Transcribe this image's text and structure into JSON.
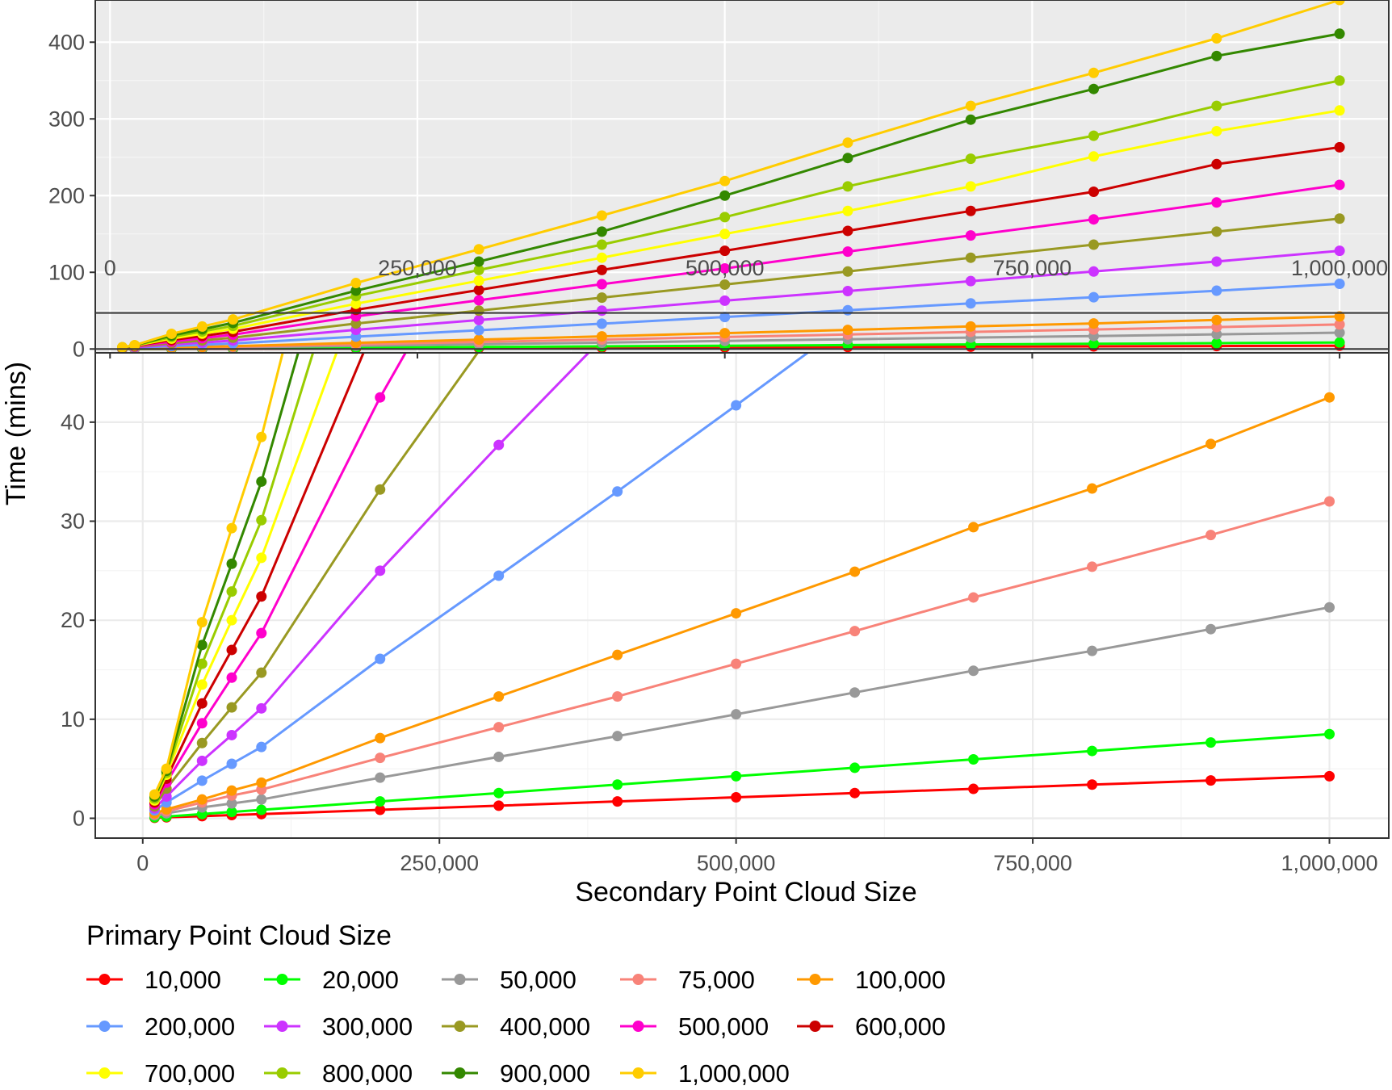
{
  "chart_data": {
    "type": "line",
    "xlabel": "Secondary Point Cloud Size",
    "ylabel": "Time (mins)",
    "x": [
      10000,
      20000,
      50000,
      75000,
      100000,
      200000,
      300000,
      400000,
      500000,
      600000,
      700000,
      800000,
      900000,
      1000000
    ],
    "x_ticks": [
      0,
      250000,
      500000,
      750000,
      1000000
    ],
    "x_tick_labels": [
      "0",
      "250,000",
      "500,000",
      "750,000",
      "1,000,000"
    ],
    "inset": {
      "xlim": [
        -12000,
        1040000
      ],
      "ylim": [
        -5,
        455
      ],
      "y_ticks": [
        0,
        100,
        200,
        300,
        400
      ],
      "y_tick_labels": [
        "0",
        "100",
        "200",
        "300",
        "400"
      ],
      "zoom_band": [
        0,
        47
      ],
      "background": "#ebebeb"
    },
    "main": {
      "xlim": [
        -40000,
        1050000
      ],
      "ylim": [
        -2,
        47
      ],
      "y_ticks": [
        0,
        10,
        20,
        30,
        40
      ],
      "y_tick_labels": [
        "0",
        "10",
        "20",
        "30",
        "40"
      ]
    },
    "legend": {
      "title": "Primary Point Cloud Size",
      "position": "bottom",
      "columns": 5
    },
    "series": [
      {
        "name": "10,000",
        "color": "#ff0000",
        "values": [
          0.05,
          0.1,
          0.21,
          0.32,
          0.42,
          0.85,
          1.27,
          1.7,
          2.12,
          2.55,
          2.97,
          3.4,
          3.82,
          4.25
        ]
      },
      {
        "name": "20,000",
        "color": "#00ff00",
        "values": [
          0.1,
          0.17,
          0.43,
          0.64,
          0.85,
          1.7,
          2.55,
          3.4,
          4.25,
          5.1,
          5.95,
          6.8,
          7.65,
          8.5
        ]
      },
      {
        "name": "50,000",
        "color": "#999999",
        "values": [
          0.3,
          0.5,
          1.1,
          1.5,
          1.9,
          4.1,
          6.2,
          8.3,
          10.5,
          12.7,
          14.9,
          16.9,
          19.1,
          21.3
        ]
      },
      {
        "name": "75,000",
        "color": "#f88379",
        "values": [
          0.4,
          0.7,
          1.6,
          2.3,
          2.9,
          6.1,
          9.2,
          12.3,
          15.6,
          18.9,
          22.3,
          25.4,
          28.6,
          32.0
        ]
      },
      {
        "name": "100,000",
        "color": "#ff9900",
        "values": [
          0.5,
          0.9,
          1.9,
          2.8,
          3.6,
          8.1,
          12.3,
          16.5,
          20.7,
          24.9,
          29.4,
          33.3,
          37.8,
          42.5
        ]
      },
      {
        "name": "200,000",
        "color": "#6699ff",
        "values": [
          0.8,
          1.6,
          3.8,
          5.5,
          7.2,
          16.1,
          24.5,
          33.0,
          41.7,
          50.5,
          59.5,
          67.5,
          76.0,
          85.0
        ]
      },
      {
        "name": "300,000",
        "color": "#cc33ff",
        "values": [
          1.0,
          2.2,
          5.8,
          8.4,
          11.1,
          25.0,
          37.7,
          50.0,
          63.0,
          75.5,
          88.5,
          101.0,
          114.0,
          128.0
        ]
      },
      {
        "name": "400,000",
        "color": "#999922",
        "values": [
          1.2,
          3.0,
          7.6,
          11.2,
          14.7,
          33.2,
          50.0,
          67.0,
          84.0,
          101.0,
          119.0,
          136.0,
          153.0,
          170.0
        ]
      },
      {
        "name": "500,000",
        "color": "#ff00cc",
        "values": [
          1.4,
          3.6,
          9.6,
          14.2,
          18.7,
          42.5,
          63.5,
          84.5,
          105.0,
          127.0,
          148.0,
          169.0,
          191.0,
          214.0
        ]
      },
      {
        "name": "600,000",
        "color": "#cc0000",
        "values": [
          1.6,
          4.0,
          11.6,
          17.0,
          22.4,
          51.0,
          77.0,
          103.0,
          128.0,
          154.0,
          180.0,
          205.0,
          241.0,
          263.0
        ]
      },
      {
        "name": "700,000",
        "color": "#ffff00",
        "values": [
          1.8,
          4.4,
          13.5,
          20.0,
          26.3,
          59.0,
          89.0,
          119.0,
          150.0,
          180.0,
          212.0,
          251.0,
          284.0,
          311.0
        ]
      },
      {
        "name": "800,000",
        "color": "#99cc00",
        "values": [
          2.0,
          4.6,
          15.6,
          22.9,
          30.1,
          69.0,
          103.0,
          136.0,
          172.0,
          212.0,
          248.0,
          278.0,
          317.0,
          350.0
        ]
      },
      {
        "name": "900,000",
        "color": "#338800",
        "values": [
          2.2,
          4.8,
          17.5,
          25.7,
          34.0,
          76.0,
          114.0,
          153.0,
          200.0,
          249.0,
          299.0,
          339.0,
          382.0,
          411.0
        ]
      },
      {
        "name": "1,000,000",
        "color": "#ffcc00",
        "values": [
          2.4,
          5.0,
          19.8,
          29.3,
          38.5,
          86.0,
          130.0,
          174.0,
          219.0,
          269.0,
          317.0,
          360.0,
          405.0,
          455.0
        ]
      }
    ]
  }
}
